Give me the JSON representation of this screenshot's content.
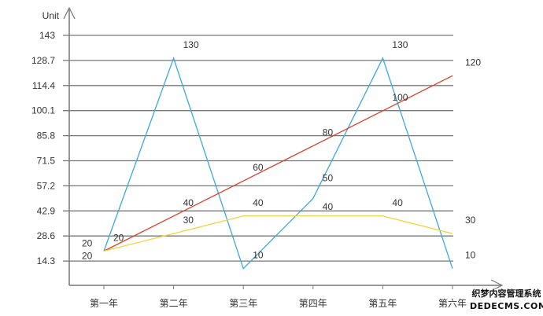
{
  "chart_data": {
    "type": "line",
    "ylabel": "Unit",
    "categories": [
      "第一年",
      "第二年",
      "第三年",
      "第四年",
      "第五年",
      "第六年"
    ],
    "yticks": [
      14.3,
      28.6,
      42.9,
      57.2,
      71.5,
      85.8,
      100.1,
      114.4,
      128.7,
      143
    ],
    "ylim": [
      0,
      143
    ],
    "grid": true,
    "series": [
      {
        "color": "#3fa9d6",
        "values": [
          20,
          130,
          10,
          50,
          130,
          10
        ]
      },
      {
        "color": "#d6402b",
        "values": [
          20,
          40,
          60,
          80,
          100,
          120
        ]
      },
      {
        "color": "#f2d53c",
        "values": [
          20,
          30,
          40,
          40,
          40,
          30
        ]
      }
    ]
  },
  "watermark": {
    "line1": "织梦内容管理系统",
    "line2": "DEDECMS.COM"
  }
}
